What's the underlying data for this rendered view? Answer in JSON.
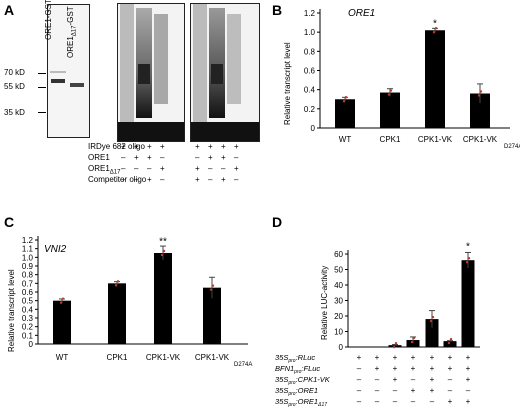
{
  "panels": {
    "A": {
      "label": "A",
      "lanes": [
        "ORE1-GST",
        "ORE1",
        "Δ17",
        "-GST"
      ],
      "mw": [
        "70 kD",
        "55 kD",
        "35 kD"
      ],
      "rows": [
        {
          "label": "IRDye 682 oligo",
          "signs": [
            "+",
            "+",
            "+",
            "+",
            "+",
            "+",
            "+",
            "+"
          ]
        },
        {
          "label": "ORE1",
          "signs": [
            "–",
            "+",
            "+",
            "–",
            "–",
            "+",
            "+",
            "–"
          ]
        },
        {
          "label": "ORE1",
          "sub": "Δ17",
          "signs": [
            "–",
            "–",
            "–",
            "+",
            "+",
            "–",
            "–",
            "+"
          ]
        },
        {
          "label": "Competitor oligo",
          "signs": [
            "–",
            "–",
            "+",
            "–",
            "+",
            "–",
            "+",
            "–"
          ]
        }
      ]
    },
    "B": {
      "label": "B",
      "gene": "ORE1",
      "ylabel": "Relative transcript level",
      "yticks": [
        "0",
        "0.2",
        "0.4",
        "0.6",
        "0.8",
        "1.0",
        "1.2"
      ],
      "xlabels": [
        "WT",
        "CPK1",
        "CPK1-VK",
        "CPK1-VK"
      ],
      "xlabel_sub": "D274A",
      "sig": "*"
    },
    "C": {
      "label": "C",
      "gene": "VNI2",
      "ylabel": "Relative transcript level",
      "yticks": [
        "0",
        "0.1",
        "0.2",
        "0.3",
        "0.4",
        "0.5",
        "0.6",
        "0.7",
        "0.8",
        "0.9",
        "1.0",
        "1.1",
        "1.2"
      ],
      "xlabels": [
        "WT",
        "CPK1",
        "CPK1-VK",
        "CPK1-VK"
      ],
      "xlabel_sub": "D274A",
      "sig": "**"
    },
    "D": {
      "label": "D",
      "ylabel": "Relative LUC-activity",
      "yticks": [
        "0",
        "10",
        "20",
        "30",
        "40",
        "50",
        "60"
      ],
      "sig": "*",
      "rows": [
        {
          "label": "35S",
          "sub": "pro",
          "suffix": ":RLuc",
          "signs": [
            "+",
            "+",
            "+",
            "+",
            "+",
            "+",
            "+"
          ]
        },
        {
          "label": "BFN1",
          "sub": "pro",
          "suffix": ":FLuc",
          "signs": [
            "–",
            "+",
            "+",
            "+",
            "+",
            "+",
            "+"
          ]
        },
        {
          "label": "35S",
          "sub": "pro",
          "suffix": ":CPK1-VK",
          "signs": [
            "–",
            "–",
            "+",
            "–",
            "+",
            "–",
            "+"
          ]
        },
        {
          "label": "35S",
          "sub": "pro",
          "suffix": ":ORE1",
          "signs": [
            "–",
            "–",
            "–",
            "+",
            "+",
            "–",
            "–"
          ]
        },
        {
          "label": "35S",
          "sub": "pro",
          "suffix": ":ORE1",
          "sub2": "Δ17",
          "signs": [
            "–",
            "–",
            "–",
            "–",
            "–",
            "+",
            "+"
          ]
        }
      ]
    }
  },
  "chart_data": [
    {
      "type": "bar",
      "title": "ORE1",
      "ylabel": "Relative transcript level",
      "categories": [
        "WT",
        "CPK1",
        "CPK1-VK",
        "CPK1-VK D274A"
      ],
      "values": [
        0.3,
        0.37,
        1.02,
        0.36
      ],
      "errors": [
        0.02,
        0.04,
        0.02,
        0.1
      ],
      "ylim": [
        0,
        1.2
      ]
    },
    {
      "type": "bar",
      "title": "VNI2",
      "ylabel": "Relative transcript level",
      "categories": [
        "WT",
        "CPK1",
        "CPK1-VK",
        "CPK1-VK D274A"
      ],
      "values": [
        0.5,
        0.7,
        1.05,
        0.65
      ],
      "errors": [
        0.02,
        0.02,
        0.08,
        0.12
      ],
      "ylim": [
        0,
        1.2
      ]
    },
    {
      "type": "bar",
      "ylabel": "Relative LUC-activity",
      "categories": [
        "1",
        "2",
        "3",
        "4",
        "5",
        "6",
        "7"
      ],
      "values": [
        0,
        0,
        1.2,
        4.5,
        18,
        3.8,
        56
      ],
      "errors": [
        0,
        0,
        0.4,
        2.0,
        5.5,
        0.3,
        5
      ],
      "ylim": [
        0,
        60
      ]
    }
  ]
}
